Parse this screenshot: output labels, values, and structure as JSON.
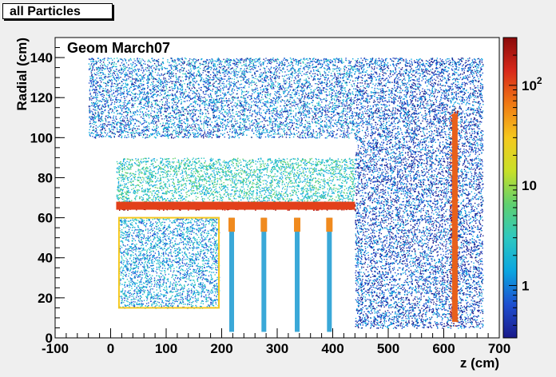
{
  "window": {
    "title_tag": "all Particles"
  },
  "chart_data": {
    "type": "heatmap",
    "title": "Geom March07",
    "xlabel": "z (cm)",
    "ylabel": "Radial (cm)",
    "xlim": [
      -100,
      700
    ],
    "ylim": [
      0,
      150
    ],
    "x_ticks": [
      -100,
      0,
      100,
      200,
      300,
      400,
      500,
      600,
      700
    ],
    "y_ticks": [
      0,
      20,
      40,
      60,
      80,
      100,
      120,
      140
    ],
    "color_scale": {
      "type": "log",
      "range": [
        0.3,
        300
      ],
      "tick_labels": [
        {
          "value": 1,
          "label": "1"
        },
        {
          "value": 10,
          "label": "10"
        },
        {
          "value": 100,
          "label": "10",
          "exponent": "2"
        }
      ],
      "colors": [
        "#1a1a8a",
        "#1e4fd0",
        "#0aa5e0",
        "#2ec8c0",
        "#5fd070",
        "#c8e028",
        "#f5c81e",
        "#f07a14",
        "#d8281a",
        "#8a0a0a"
      ]
    },
    "regions": [
      {
        "name": "upper-barrel-cloud",
        "z": [
          -40,
          440
        ],
        "r": [
          100,
          140
        ],
        "intensity": 0.2
      },
      {
        "name": "tpc-volume",
        "z": [
          10,
          440
        ],
        "r": [
          66,
          90
        ],
        "intensity": 0.35
      },
      {
        "name": "tpc-inner-field-cage",
        "z": [
          10,
          440
        ],
        "r": [
          64,
          68
        ],
        "intensity": 0.95
      },
      {
        "name": "inner-box",
        "z": [
          15,
          195
        ],
        "r": [
          15,
          60
        ],
        "intensity": 0.25
      },
      {
        "name": "endcap-wall",
        "z": [
          610,
          625
        ],
        "r": [
          5,
          115
        ],
        "intensity": 0.9
      },
      {
        "name": "forward-region",
        "z": [
          440,
          670
        ],
        "r": [
          5,
          140
        ],
        "intensity": 0.15
      }
    ],
    "support_posts_z": [
      218,
      276,
      336,
      394
    ]
  }
}
